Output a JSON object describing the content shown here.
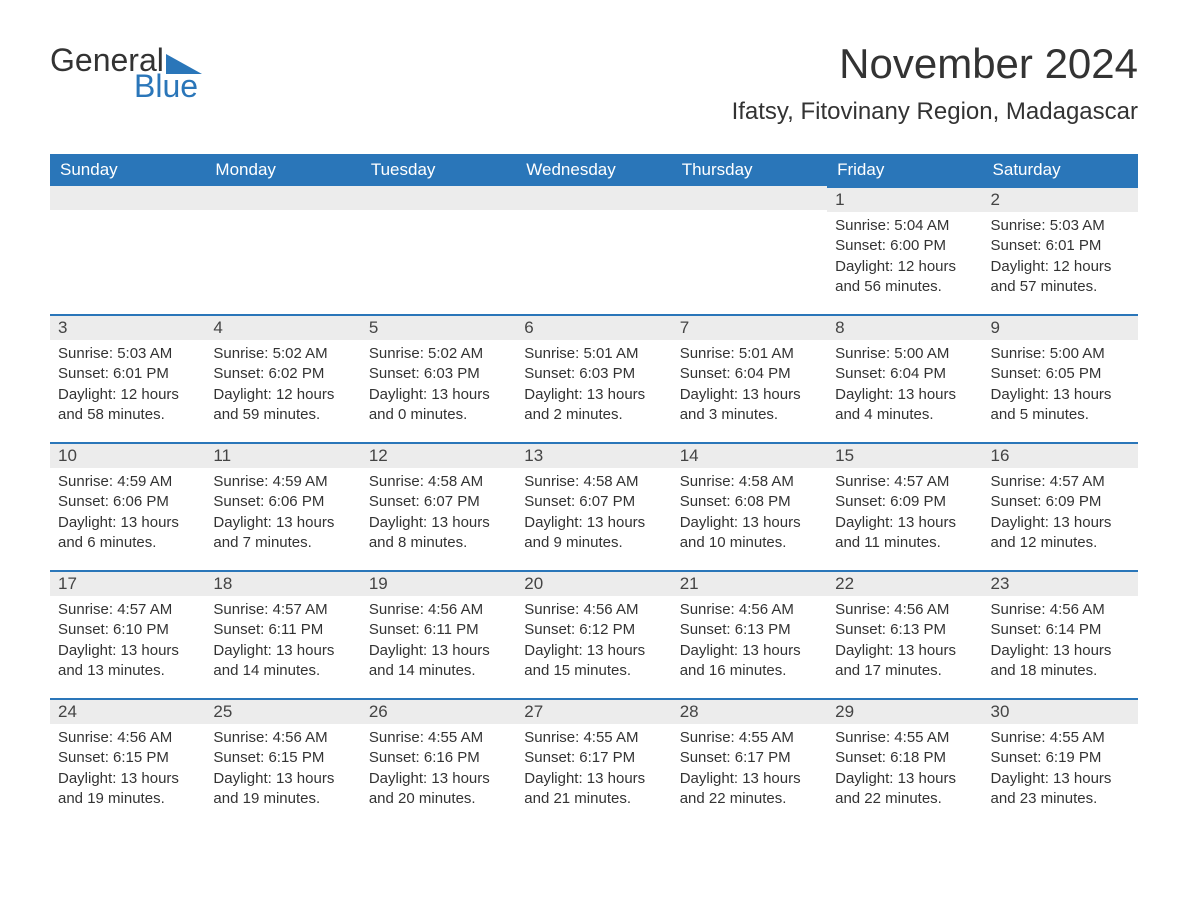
{
  "logo": {
    "word1": "General",
    "word2": "Blue"
  },
  "title": "November 2024",
  "location": "Ifatsy, Fitovinany Region, Madagascar",
  "colors": {
    "brand_blue": "#2a76b9",
    "header_bg": "#2a76b9",
    "header_text": "#ffffff",
    "daynum_bg": "#ececec",
    "text": "#333333",
    "page_bg": "#ffffff"
  },
  "weekdays": [
    "Sunday",
    "Monday",
    "Tuesday",
    "Wednesday",
    "Thursday",
    "Friday",
    "Saturday"
  ],
  "weeks": [
    [
      null,
      null,
      null,
      null,
      null,
      {
        "d": "1",
        "sunrise": "Sunrise: 5:04 AM",
        "sunset": "Sunset: 6:00 PM",
        "daylight": "Daylight: 12 hours and 56 minutes."
      },
      {
        "d": "2",
        "sunrise": "Sunrise: 5:03 AM",
        "sunset": "Sunset: 6:01 PM",
        "daylight": "Daylight: 12 hours and 57 minutes."
      }
    ],
    [
      {
        "d": "3",
        "sunrise": "Sunrise: 5:03 AM",
        "sunset": "Sunset: 6:01 PM",
        "daylight": "Daylight: 12 hours and 58 minutes."
      },
      {
        "d": "4",
        "sunrise": "Sunrise: 5:02 AM",
        "sunset": "Sunset: 6:02 PM",
        "daylight": "Daylight: 12 hours and 59 minutes."
      },
      {
        "d": "5",
        "sunrise": "Sunrise: 5:02 AM",
        "sunset": "Sunset: 6:03 PM",
        "daylight": "Daylight: 13 hours and 0 minutes."
      },
      {
        "d": "6",
        "sunrise": "Sunrise: 5:01 AM",
        "sunset": "Sunset: 6:03 PM",
        "daylight": "Daylight: 13 hours and 2 minutes."
      },
      {
        "d": "7",
        "sunrise": "Sunrise: 5:01 AM",
        "sunset": "Sunset: 6:04 PM",
        "daylight": "Daylight: 13 hours and 3 minutes."
      },
      {
        "d": "8",
        "sunrise": "Sunrise: 5:00 AM",
        "sunset": "Sunset: 6:04 PM",
        "daylight": "Daylight: 13 hours and 4 minutes."
      },
      {
        "d": "9",
        "sunrise": "Sunrise: 5:00 AM",
        "sunset": "Sunset: 6:05 PM",
        "daylight": "Daylight: 13 hours and 5 minutes."
      }
    ],
    [
      {
        "d": "10",
        "sunrise": "Sunrise: 4:59 AM",
        "sunset": "Sunset: 6:06 PM",
        "daylight": "Daylight: 13 hours and 6 minutes."
      },
      {
        "d": "11",
        "sunrise": "Sunrise: 4:59 AM",
        "sunset": "Sunset: 6:06 PM",
        "daylight": "Daylight: 13 hours and 7 minutes."
      },
      {
        "d": "12",
        "sunrise": "Sunrise: 4:58 AM",
        "sunset": "Sunset: 6:07 PM",
        "daylight": "Daylight: 13 hours and 8 minutes."
      },
      {
        "d": "13",
        "sunrise": "Sunrise: 4:58 AM",
        "sunset": "Sunset: 6:07 PM",
        "daylight": "Daylight: 13 hours and 9 minutes."
      },
      {
        "d": "14",
        "sunrise": "Sunrise: 4:58 AM",
        "sunset": "Sunset: 6:08 PM",
        "daylight": "Daylight: 13 hours and 10 minutes."
      },
      {
        "d": "15",
        "sunrise": "Sunrise: 4:57 AM",
        "sunset": "Sunset: 6:09 PM",
        "daylight": "Daylight: 13 hours and 11 minutes."
      },
      {
        "d": "16",
        "sunrise": "Sunrise: 4:57 AM",
        "sunset": "Sunset: 6:09 PM",
        "daylight": "Daylight: 13 hours and 12 minutes."
      }
    ],
    [
      {
        "d": "17",
        "sunrise": "Sunrise: 4:57 AM",
        "sunset": "Sunset: 6:10 PM",
        "daylight": "Daylight: 13 hours and 13 minutes."
      },
      {
        "d": "18",
        "sunrise": "Sunrise: 4:57 AM",
        "sunset": "Sunset: 6:11 PM",
        "daylight": "Daylight: 13 hours and 14 minutes."
      },
      {
        "d": "19",
        "sunrise": "Sunrise: 4:56 AM",
        "sunset": "Sunset: 6:11 PM",
        "daylight": "Daylight: 13 hours and 14 minutes."
      },
      {
        "d": "20",
        "sunrise": "Sunrise: 4:56 AM",
        "sunset": "Sunset: 6:12 PM",
        "daylight": "Daylight: 13 hours and 15 minutes."
      },
      {
        "d": "21",
        "sunrise": "Sunrise: 4:56 AM",
        "sunset": "Sunset: 6:13 PM",
        "daylight": "Daylight: 13 hours and 16 minutes."
      },
      {
        "d": "22",
        "sunrise": "Sunrise: 4:56 AM",
        "sunset": "Sunset: 6:13 PM",
        "daylight": "Daylight: 13 hours and 17 minutes."
      },
      {
        "d": "23",
        "sunrise": "Sunrise: 4:56 AM",
        "sunset": "Sunset: 6:14 PM",
        "daylight": "Daylight: 13 hours and 18 minutes."
      }
    ],
    [
      {
        "d": "24",
        "sunrise": "Sunrise: 4:56 AM",
        "sunset": "Sunset: 6:15 PM",
        "daylight": "Daylight: 13 hours and 19 minutes."
      },
      {
        "d": "25",
        "sunrise": "Sunrise: 4:56 AM",
        "sunset": "Sunset: 6:15 PM",
        "daylight": "Daylight: 13 hours and 19 minutes."
      },
      {
        "d": "26",
        "sunrise": "Sunrise: 4:55 AM",
        "sunset": "Sunset: 6:16 PM",
        "daylight": "Daylight: 13 hours and 20 minutes."
      },
      {
        "d": "27",
        "sunrise": "Sunrise: 4:55 AM",
        "sunset": "Sunset: 6:17 PM",
        "daylight": "Daylight: 13 hours and 21 minutes."
      },
      {
        "d": "28",
        "sunrise": "Sunrise: 4:55 AM",
        "sunset": "Sunset: 6:17 PM",
        "daylight": "Daylight: 13 hours and 22 minutes."
      },
      {
        "d": "29",
        "sunrise": "Sunrise: 4:55 AM",
        "sunset": "Sunset: 6:18 PM",
        "daylight": "Daylight: 13 hours and 22 minutes."
      },
      {
        "d": "30",
        "sunrise": "Sunrise: 4:55 AM",
        "sunset": "Sunset: 6:19 PM",
        "daylight": "Daylight: 13 hours and 23 minutes."
      }
    ]
  ]
}
